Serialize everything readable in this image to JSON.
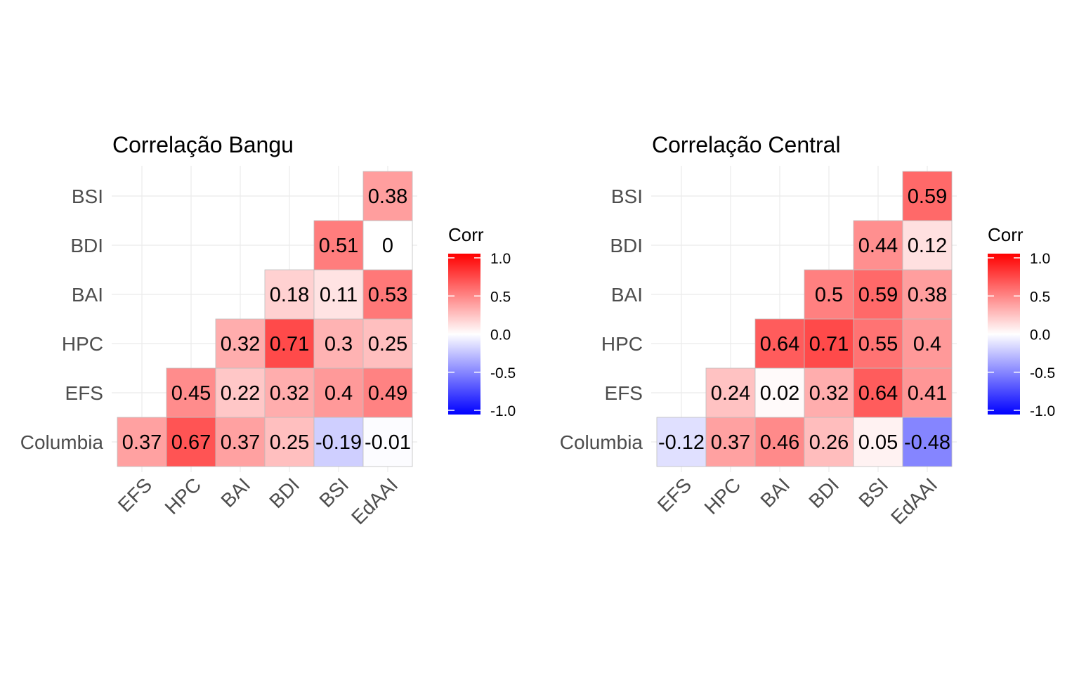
{
  "colors": {
    "negative": "#0000ff",
    "neutral": "#ffffff",
    "positive": "#ff0000",
    "grid": "#ebebeb",
    "tile_border": "#bebebe",
    "axis_text": "#4d4d4d",
    "title_text": "#000000",
    "cell_text": "#000000"
  },
  "chart_data": [
    {
      "type": "heatmap",
      "title": "Correlação Bangu",
      "x_categories": [
        "EFS",
        "HPC",
        "BAI",
        "BDI",
        "BSI",
        "EdAAI"
      ],
      "y_categories": [
        "Columbia",
        "EFS",
        "HPC",
        "BAI",
        "BDI",
        "BSI"
      ],
      "legend": {
        "title": "Corr",
        "ticks": [
          "1.0",
          "0.5",
          "0.0",
          "-0.5",
          "-1.0"
        ],
        "range": [
          -1,
          1
        ],
        "placement": "right"
      },
      "grid": true,
      "cells": [
        {
          "x": "EFS",
          "y": "Columbia",
          "value": 0.37,
          "label": "0.37"
        },
        {
          "x": "HPC",
          "y": "Columbia",
          "value": 0.67,
          "label": "0.67"
        },
        {
          "x": "BAI",
          "y": "Columbia",
          "value": 0.37,
          "label": "0.37"
        },
        {
          "x": "BDI",
          "y": "Columbia",
          "value": 0.25,
          "label": "0.25"
        },
        {
          "x": "BSI",
          "y": "Columbia",
          "value": -0.19,
          "label": "-0.19"
        },
        {
          "x": "EdAAI",
          "y": "Columbia",
          "value": -0.01,
          "label": "-0.01"
        },
        {
          "x": "HPC",
          "y": "EFS",
          "value": 0.45,
          "label": "0.45"
        },
        {
          "x": "BAI",
          "y": "EFS",
          "value": 0.22,
          "label": "0.22"
        },
        {
          "x": "BDI",
          "y": "EFS",
          "value": 0.32,
          "label": "0.32"
        },
        {
          "x": "BSI",
          "y": "EFS",
          "value": 0.4,
          "label": "0.4"
        },
        {
          "x": "EdAAI",
          "y": "EFS",
          "value": 0.49,
          "label": "0.49"
        },
        {
          "x": "BAI",
          "y": "HPC",
          "value": 0.32,
          "label": "0.32"
        },
        {
          "x": "BDI",
          "y": "HPC",
          "value": 0.71,
          "label": "0.71"
        },
        {
          "x": "BSI",
          "y": "HPC",
          "value": 0.3,
          "label": "0.3"
        },
        {
          "x": "EdAAI",
          "y": "HPC",
          "value": 0.25,
          "label": "0.25"
        },
        {
          "x": "BDI",
          "y": "BAI",
          "value": 0.18,
          "label": "0.18"
        },
        {
          "x": "BSI",
          "y": "BAI",
          "value": 0.11,
          "label": "0.11"
        },
        {
          "x": "EdAAI",
          "y": "BAI",
          "value": 0.53,
          "label": "0.53"
        },
        {
          "x": "BSI",
          "y": "BDI",
          "value": 0.51,
          "label": "0.51"
        },
        {
          "x": "EdAAI",
          "y": "BDI",
          "value": 0,
          "label": "0"
        },
        {
          "x": "EdAAI",
          "y": "BSI",
          "value": 0.38,
          "label": "0.38"
        }
      ]
    },
    {
      "type": "heatmap",
      "title": "Correlação Central",
      "x_categories": [
        "EFS",
        "HPC",
        "BAI",
        "BDI",
        "BSI",
        "EdAAI"
      ],
      "y_categories": [
        "Columbia",
        "EFS",
        "HPC",
        "BAI",
        "BDI",
        "BSI"
      ],
      "legend": {
        "title": "Corr",
        "ticks": [
          "1.0",
          "0.5",
          "0.0",
          "-0.5",
          "-1.0"
        ],
        "range": [
          -1,
          1
        ],
        "placement": "right"
      },
      "grid": true,
      "cells": [
        {
          "x": "EFS",
          "y": "Columbia",
          "value": -0.12,
          "label": "-0.12"
        },
        {
          "x": "HPC",
          "y": "Columbia",
          "value": 0.37,
          "label": "0.37"
        },
        {
          "x": "BAI",
          "y": "Columbia",
          "value": 0.46,
          "label": "0.46"
        },
        {
          "x": "BDI",
          "y": "Columbia",
          "value": 0.26,
          "label": "0.26"
        },
        {
          "x": "BSI",
          "y": "Columbia",
          "value": 0.05,
          "label": "0.05"
        },
        {
          "x": "EdAAI",
          "y": "Columbia",
          "value": -0.48,
          "label": "-0.48"
        },
        {
          "x": "HPC",
          "y": "EFS",
          "value": 0.24,
          "label": "0.24"
        },
        {
          "x": "BAI",
          "y": "EFS",
          "value": 0.02,
          "label": "0.02"
        },
        {
          "x": "BDI",
          "y": "EFS",
          "value": 0.32,
          "label": "0.32"
        },
        {
          "x": "BSI",
          "y": "EFS",
          "value": 0.64,
          "label": "0.64"
        },
        {
          "x": "EdAAI",
          "y": "EFS",
          "value": 0.41,
          "label": "0.41"
        },
        {
          "x": "BAI",
          "y": "HPC",
          "value": 0.64,
          "label": "0.64"
        },
        {
          "x": "BDI",
          "y": "HPC",
          "value": 0.71,
          "label": "0.71"
        },
        {
          "x": "BSI",
          "y": "HPC",
          "value": 0.55,
          "label": "0.55"
        },
        {
          "x": "EdAAI",
          "y": "HPC",
          "value": 0.4,
          "label": "0.4"
        },
        {
          "x": "BDI",
          "y": "BAI",
          "value": 0.5,
          "label": "0.5"
        },
        {
          "x": "BSI",
          "y": "BAI",
          "value": 0.59,
          "label": "0.59"
        },
        {
          "x": "EdAAI",
          "y": "BAI",
          "value": 0.38,
          "label": "0.38"
        },
        {
          "x": "BSI",
          "y": "BDI",
          "value": 0.44,
          "label": "0.44"
        },
        {
          "x": "EdAAI",
          "y": "BDI",
          "value": 0.12,
          "label": "0.12"
        },
        {
          "x": "EdAAI",
          "y": "BSI",
          "value": 0.59,
          "label": "0.59"
        }
      ]
    }
  ]
}
